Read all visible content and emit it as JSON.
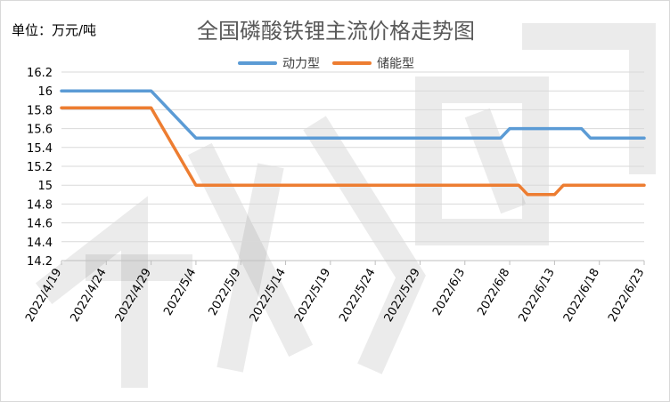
{
  "title": "全国磷酸铁锂主流价格走势图",
  "unit_label": "单位：万元/吨",
  "chart_data": {
    "type": "line",
    "title": "全国磷酸铁锂主流价格走势图",
    "xlabel": "",
    "ylabel": "单位：万元/吨",
    "ylim": [
      14.2,
      16.2
    ],
    "y_ticks": [
      "14.2",
      "14.4",
      "14.6",
      "14.8",
      "15",
      "15.2",
      "15.4",
      "15.6",
      "15.8",
      "16",
      "16.2"
    ],
    "x_ticks": [
      "2022/4/19",
      "2022/4/24",
      "2022/4/29",
      "2022/5/4",
      "2022/5/9",
      "2022/5/14",
      "2022/5/19",
      "2022/5/24",
      "2022/5/29",
      "2022/6/3",
      "2022/6/8",
      "2022/6/13",
      "2022/6/18",
      "2022/6/23"
    ],
    "x_range": [
      "2022/4/19",
      "2022/6/23"
    ],
    "grid": "horizontal",
    "legend": "top-center",
    "series": [
      {
        "name": "动力型",
        "color": "#5B9BD5",
        "points": [
          [
            "2022/4/19",
            16.0
          ],
          [
            "2022/4/28",
            16.0
          ],
          [
            "2022/4/29",
            16.0
          ],
          [
            "2022/5/4",
            15.5
          ],
          [
            "2022/6/6",
            15.5
          ],
          [
            "2022/6/7",
            15.5
          ],
          [
            "2022/6/8",
            15.6
          ],
          [
            "2022/6/15",
            15.6
          ],
          [
            "2022/6/16",
            15.6
          ],
          [
            "2022/6/17",
            15.5
          ],
          [
            "2022/6/23",
            15.5
          ]
        ]
      },
      {
        "name": "储能型",
        "color": "#ED7D31",
        "points": [
          [
            "2022/4/19",
            15.82
          ],
          [
            "2022/4/29",
            15.82
          ],
          [
            "2022/5/4",
            15.0
          ],
          [
            "2022/6/9",
            15.0
          ],
          [
            "2022/6/10",
            14.9
          ],
          [
            "2022/6/13",
            14.9
          ],
          [
            "2022/6/14",
            15.0
          ],
          [
            "2022/6/23",
            15.0
          ]
        ]
      }
    ]
  }
}
